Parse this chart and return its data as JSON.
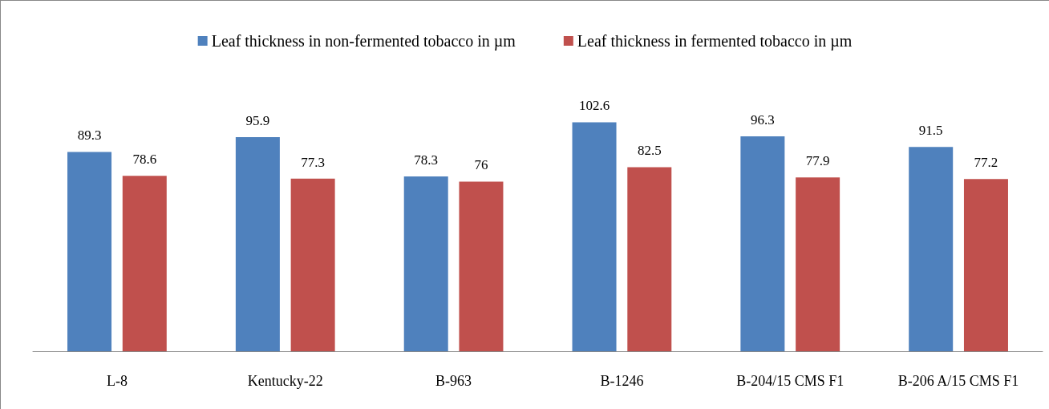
{
  "chart_data": {
    "type": "bar",
    "categories": [
      "L-8",
      "Kentucky-22",
      "B-963",
      "B-1246",
      "B-204/15 CMS F1",
      "B-206 A/15 CMS F1"
    ],
    "series": [
      {
        "name": "Leaf thickness in non-fermented tobacco in µm",
        "color": "#4f81bd",
        "values": [
          89.3,
          95.9,
          78.3,
          102.6,
          96.3,
          91.5
        ]
      },
      {
        "name": "Leaf thickness in fermented tobacco in µm",
        "color": "#c0504d",
        "values": [
          78.6,
          77.3,
          76,
          82.5,
          77.9,
          77.2
        ]
      }
    ],
    "data_labels": true,
    "legend": "top",
    "grid": false
  }
}
